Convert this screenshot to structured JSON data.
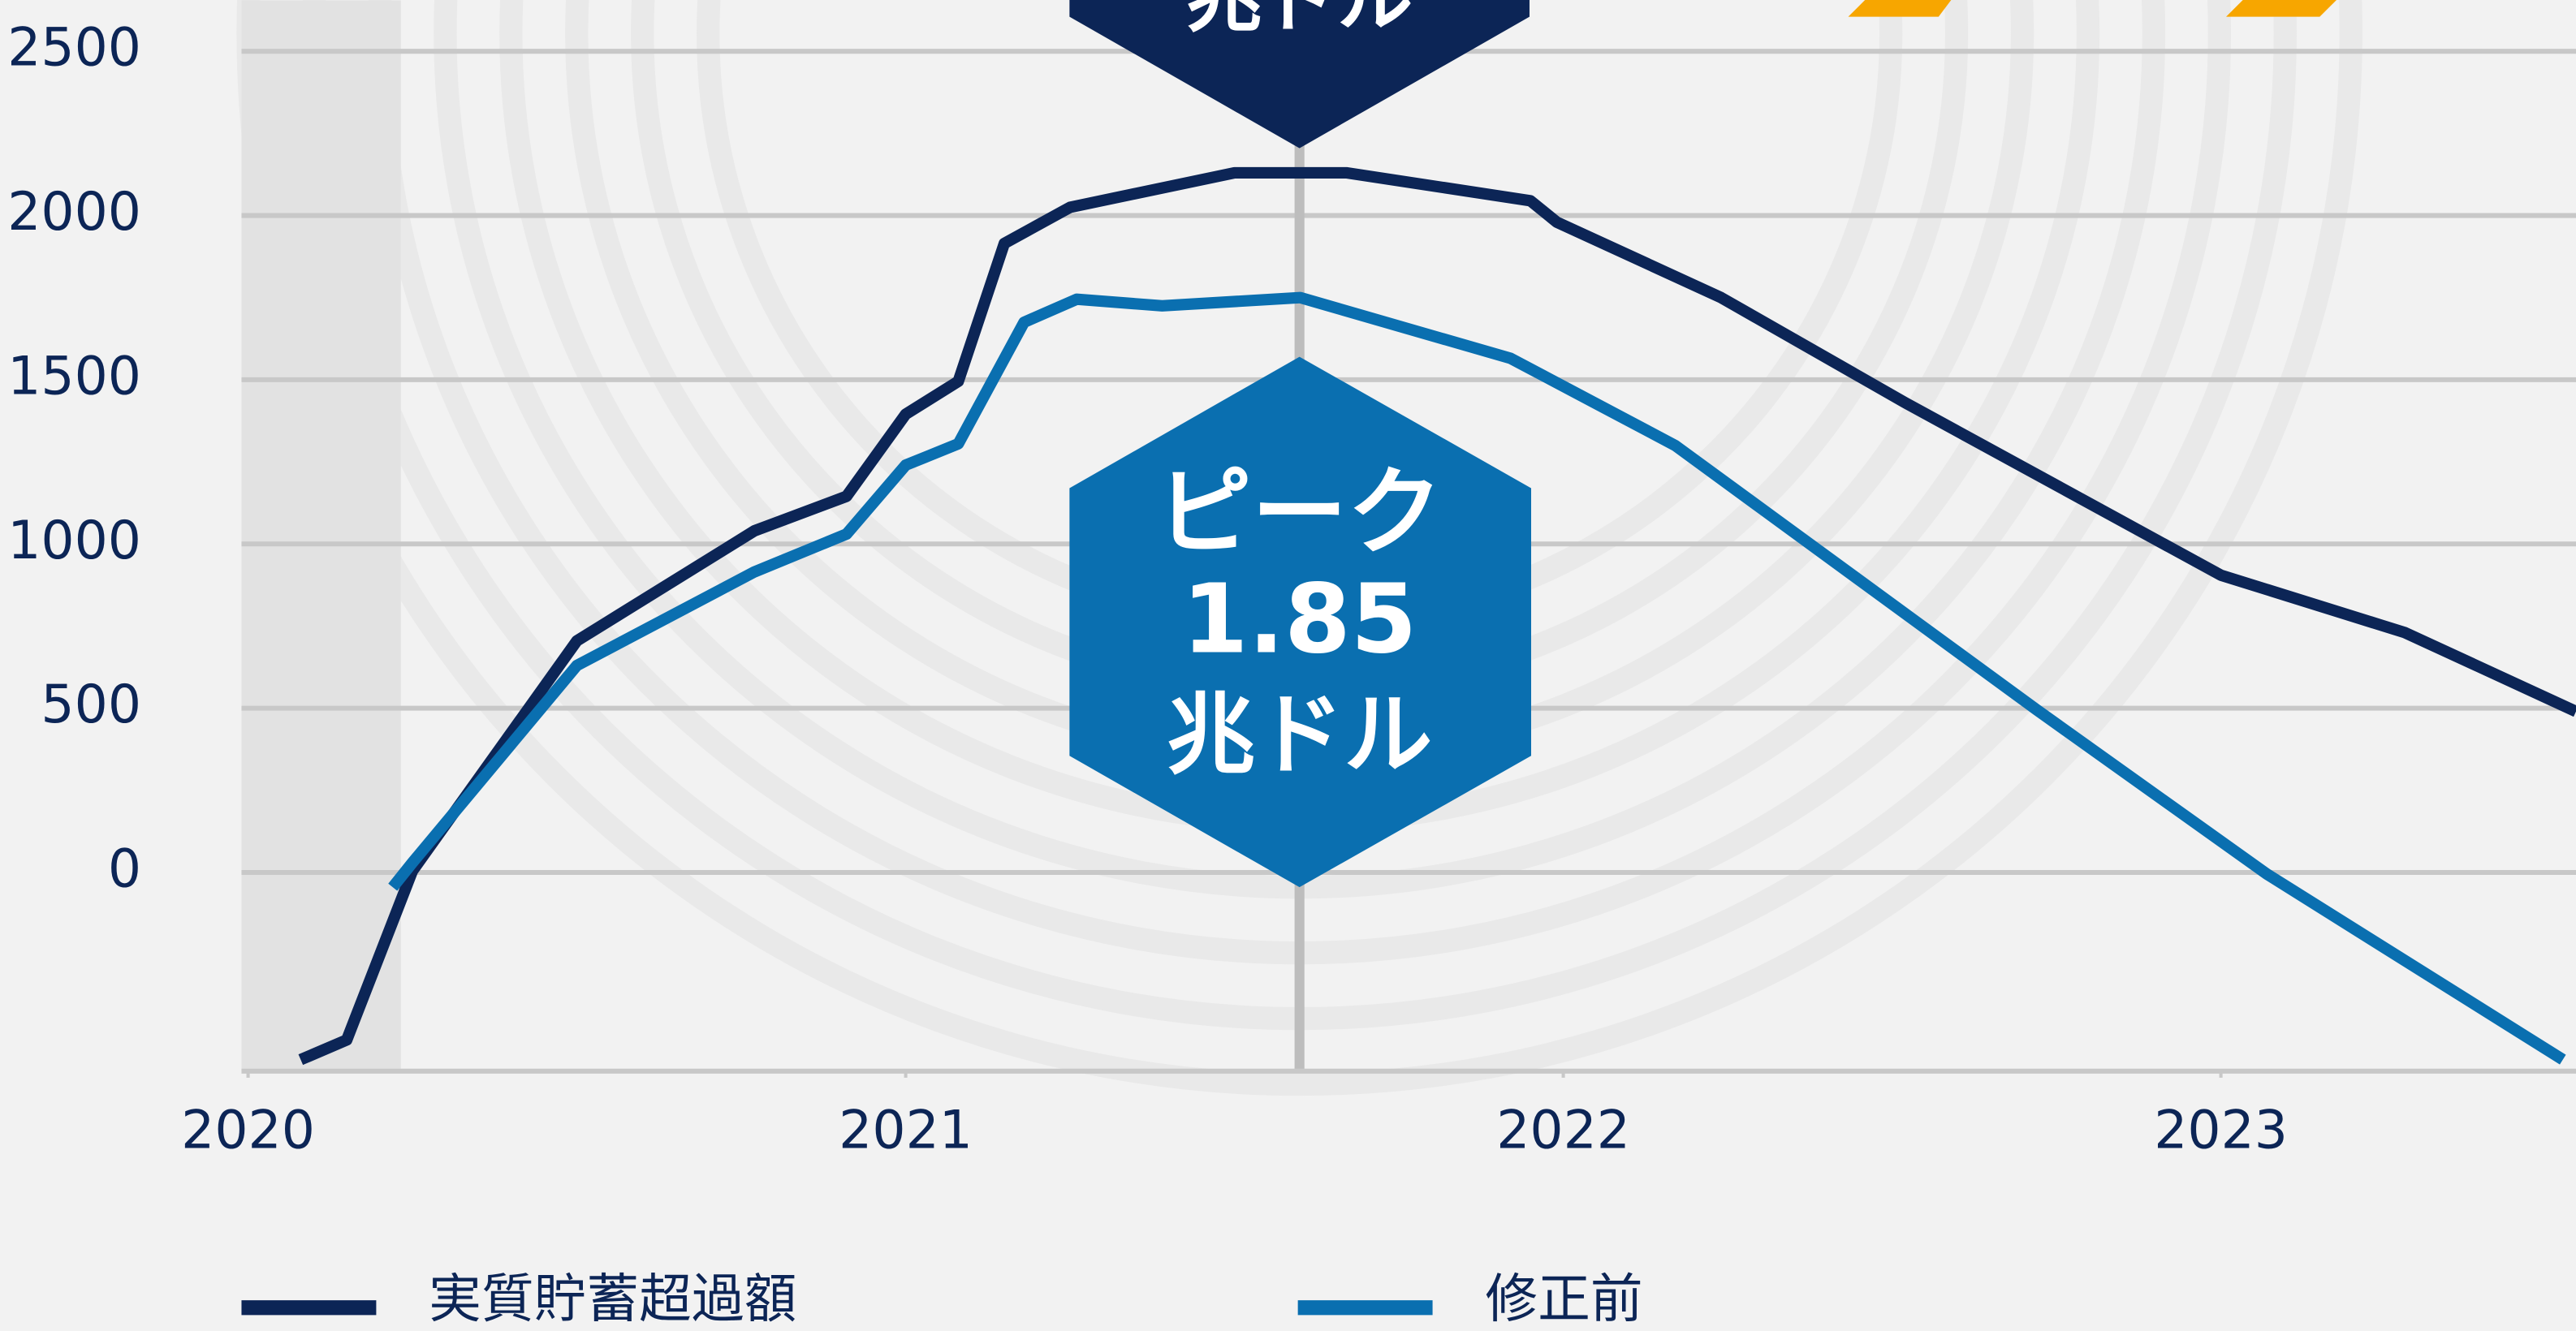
{
  "chart_data": {
    "type": "line",
    "series": [
      {
        "name": "実質貯蓄超過額",
        "color": "#0c2556",
        "x": [
          2020.08,
          2020.15,
          2020.25,
          2020.5,
          2020.77,
          2020.91,
          2021.0,
          2021.08,
          2021.15,
          2021.25,
          2021.5,
          2021.67,
          2021.95,
          2021.99,
          2022.24,
          2022.52,
          2023.0,
          2023.28,
          2023.54
        ],
        "values": [
          -570,
          -510,
          5,
          705,
          1040,
          1145,
          1395,
          1495,
          1915,
          2025,
          2130,
          2130,
          2045,
          1980,
          1750,
          1430,
          905,
          730,
          490
        ]
      },
      {
        "name": "修正前",
        "color": "#0a6fb0",
        "x": [
          2020.22,
          2020.25,
          2020.5,
          2020.77,
          2020.91,
          2021.0,
          2021.08,
          2021.18,
          2021.26,
          2021.39,
          2021.6,
          2021.92,
          2022.17,
          2022.72,
          2023.07,
          2023.52
        ],
        "values": [
          -45,
          30,
          630,
          915,
          1030,
          1240,
          1305,
          1675,
          1745,
          1725,
          1750,
          1565,
          1300,
          495,
          -5,
          -570
        ]
      }
    ],
    "xlim": [
      2019.99,
      2023.54
    ],
    "xticks": [
      2020,
      2021,
      2022,
      2023
    ],
    "ylim": [
      -605,
      2655
    ],
    "yticks": [
      0,
      500,
      1000,
      1500,
      2000,
      2500
    ],
    "grid": true,
    "annotations": [
      {
        "text": "兆ドル"
      },
      {
        "lines": [
          "ピーク",
          "1.85",
          "兆ドル"
        ]
      }
    ]
  }
}
